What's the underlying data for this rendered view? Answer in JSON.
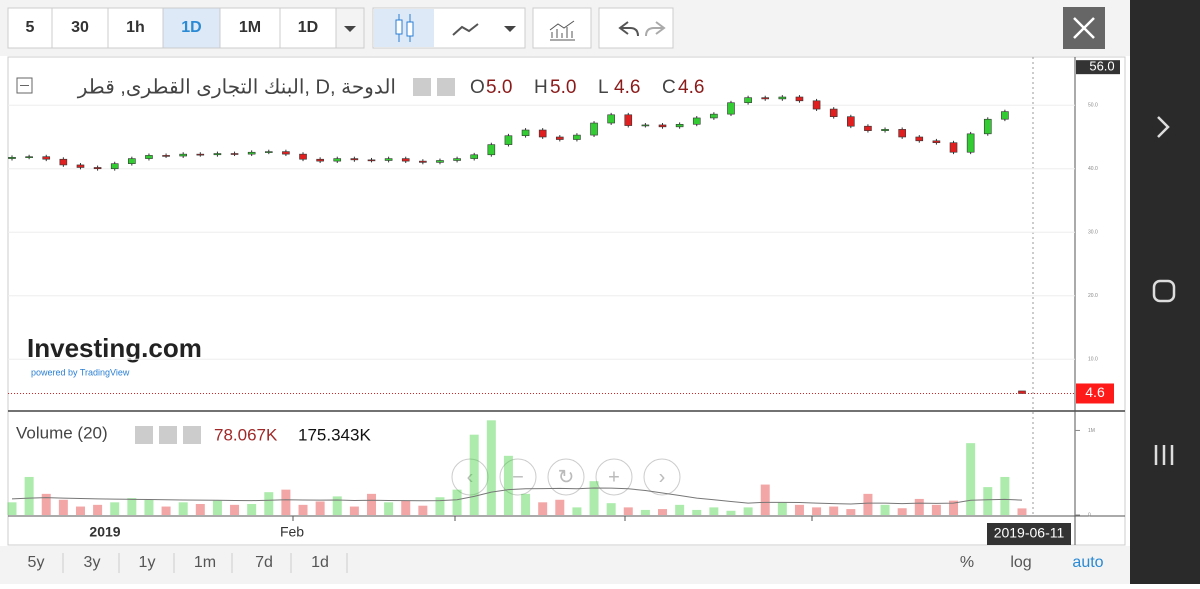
{
  "toolbar": {
    "intervals": [
      "5",
      "30",
      "1h",
      "1D",
      "1M",
      "1D"
    ],
    "active": 3
  },
  "chart_data": {
    "type": "candlestick",
    "title": "البنك التجارى القطرى, قطر, D, الدوحة",
    "ohlc_legend": [
      {
        "label": "O",
        "value": "5.0"
      },
      {
        "label": "H",
        "value": "5.0"
      },
      {
        "label": "L",
        "value": "4.6"
      },
      {
        "label": "C",
        "value": "4.6"
      }
    ],
    "watermark": "Investing.com",
    "watermark_sub": "powered by TradingView",
    "ylim": [
      2,
      57.6
    ],
    "yticks": [
      {
        "value": 10,
        "label": "10.0"
      },
      {
        "value": 20,
        "label": "20.0"
      },
      {
        "value": 30,
        "label": "30.0"
      },
      {
        "value": 40,
        "label": "40.0"
      },
      {
        "value": 50,
        "label": "50.0"
      }
    ],
    "top_label": {
      "value": 56,
      "label": "56.0"
    },
    "last_price": {
      "value": 4.6,
      "label": "4.6"
    },
    "up_color": "#33cc33",
    "down_color": "#e02020",
    "candles": [
      [
        41.6,
        42.1,
        41.3,
        41.8
      ],
      [
        41.8,
        42.2,
        41.5,
        41.9
      ],
      [
        41.9,
        42.2,
        41.2,
        41.5
      ],
      [
        41.5,
        41.8,
        40.3,
        40.6
      ],
      [
        40.6,
        40.9,
        39.9,
        40.2
      ],
      [
        40.2,
        40.5,
        39.7,
        40.0
      ],
      [
        40.0,
        41.1,
        39.7,
        40.8
      ],
      [
        40.8,
        41.9,
        40.5,
        41.6
      ],
      [
        41.6,
        42.4,
        41.3,
        42.1
      ],
      [
        42.1,
        42.4,
        41.7,
        42.0
      ],
      [
        42.0,
        42.6,
        41.7,
        42.3
      ],
      [
        42.3,
        42.6,
        41.9,
        42.2
      ],
      [
        42.2,
        42.7,
        41.9,
        42.4
      ],
      [
        42.4,
        42.7,
        42.0,
        42.3
      ],
      [
        42.3,
        42.9,
        42.0,
        42.6
      ],
      [
        42.6,
        43.0,
        42.3,
        42.7
      ],
      [
        42.7,
        43.0,
        42.0,
        42.3
      ],
      [
        42.3,
        42.6,
        41.2,
        41.5
      ],
      [
        41.5,
        41.8,
        40.9,
        41.2
      ],
      [
        41.2,
        41.9,
        40.9,
        41.6
      ],
      [
        41.6,
        41.9,
        41.1,
        41.4
      ],
      [
        41.4,
        41.7,
        41.0,
        41.3
      ],
      [
        41.3,
        41.9,
        41.0,
        41.6
      ],
      [
        41.6,
        41.9,
        40.9,
        41.2
      ],
      [
        41.2,
        41.5,
        40.7,
        41.0
      ],
      [
        41.0,
        41.6,
        40.7,
        41.3
      ],
      [
        41.3,
        41.9,
        41.0,
        41.6
      ],
      [
        41.6,
        42.5,
        41.3,
        42.2
      ],
      [
        42.2,
        44.1,
        41.9,
        43.8
      ],
      [
        43.8,
        45.5,
        43.5,
        45.2
      ],
      [
        45.2,
        46.4,
        44.9,
        46.1
      ],
      [
        46.1,
        46.4,
        44.7,
        45.0
      ],
      [
        45.0,
        45.3,
        44.3,
        44.6
      ],
      [
        44.6,
        45.6,
        44.3,
        45.3
      ],
      [
        45.3,
        47.5,
        45.0,
        47.2
      ],
      [
        47.2,
        48.8,
        46.9,
        48.5
      ],
      [
        48.5,
        48.8,
        46.5,
        46.8
      ],
      [
        46.8,
        47.2,
        46.5,
        46.9
      ],
      [
        46.9,
        47.2,
        46.3,
        46.6
      ],
      [
        46.6,
        47.3,
        46.3,
        47.0
      ],
      [
        47.0,
        48.3,
        46.7,
        48.0
      ],
      [
        48.0,
        48.9,
        47.7,
        48.6
      ],
      [
        48.6,
        50.7,
        48.3,
        50.4
      ],
      [
        50.4,
        51.5,
        50.1,
        51.2
      ],
      [
        51.2,
        51.5,
        50.7,
        51.0
      ],
      [
        51.0,
        51.6,
        50.7,
        51.3
      ],
      [
        51.3,
        51.6,
        50.4,
        50.7
      ],
      [
        50.7,
        51.0,
        49.1,
        49.4
      ],
      [
        49.4,
        49.7,
        47.9,
        48.2
      ],
      [
        48.2,
        48.5,
        46.4,
        46.7
      ],
      [
        46.7,
        47.0,
        45.7,
        46.0
      ],
      [
        46.0,
        46.5,
        45.7,
        46.2
      ],
      [
        46.2,
        46.5,
        44.7,
        45.0
      ],
      [
        45.0,
        45.3,
        44.1,
        44.4
      ],
      [
        44.4,
        44.7,
        43.8,
        44.1
      ],
      [
        44.1,
        44.4,
        42.3,
        42.6
      ],
      [
        42.6,
        45.8,
        42.3,
        45.5
      ],
      [
        45.5,
        48.1,
        45.2,
        47.8
      ],
      [
        47.8,
        49.3,
        47.5,
        49.0
      ],
      [
        5.0,
        5.0,
        4.6,
        4.6
      ]
    ],
    "volume_legend": {
      "title": "Volume (20)",
      "value": "78.067K",
      "ma": "175.343K"
    },
    "vlim": [
      0,
      1230000
    ],
    "vticks": [
      {
        "value": 0,
        "label": "0"
      },
      {
        "value": 1000000,
        "label": "1M"
      }
    ],
    "volumes": [
      150000,
      450000,
      250000,
      180000,
      100000,
      120000,
      150000,
      200000,
      180000,
      100000,
      150000,
      130000,
      170000,
      120000,
      130000,
      270000,
      300000,
      120000,
      160000,
      220000,
      100000,
      250000,
      150000,
      170000,
      110000,
      210000,
      300000,
      950000,
      1120000,
      700000,
      250000,
      150000,
      180000,
      90000,
      400000,
      140000,
      90000,
      60000,
      70000,
      120000,
      60000,
      90000,
      50000,
      90000,
      360000,
      150000,
      120000,
      90000,
      100000,
      70000,
      250000,
      120000,
      80000,
      190000,
      120000,
      170000,
      850000,
      330000,
      450000,
      78067
    ],
    "volume_ma": [
      190000,
      200000,
      205000,
      200000,
      195000,
      190000,
      188000,
      185000,
      183000,
      180000,
      178000,
      176000,
      175000,
      172000,
      170000,
      175000,
      180000,
      178000,
      176000,
      178000,
      172000,
      175000,
      172000,
      170000,
      168000,
      170000,
      180000,
      220000,
      270000,
      300000,
      310000,
      312000,
      315000,
      310000,
      320000,
      318000,
      310000,
      290000,
      260000,
      230000,
      200000,
      180000,
      160000,
      140000,
      150000,
      150000,
      148000,
      140000,
      135000,
      130000,
      140000,
      140000,
      135000,
      140000,
      138000,
      140000,
      175000,
      180000,
      185000,
      175343
    ],
    "x_labels": [
      "2019",
      "Feb"
    ],
    "last_date": "2019-06-11"
  },
  "footer": {
    "ranges": [
      "5y",
      "3y",
      "1y",
      "1m",
      "7d",
      "1d"
    ],
    "options": [
      "%",
      "log",
      "auto"
    ]
  }
}
